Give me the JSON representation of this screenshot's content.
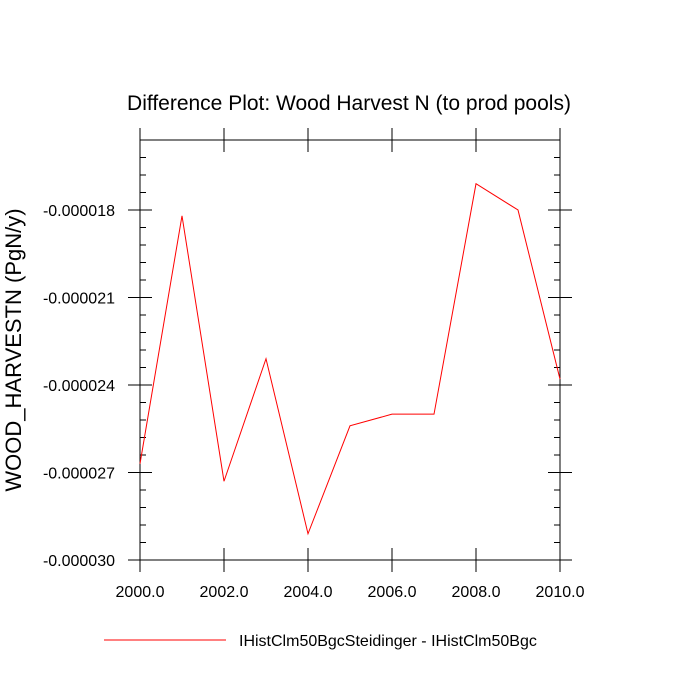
{
  "chart_data": {
    "type": "line",
    "title": "Difference Plot: Wood Harvest N (to prod pools)",
    "xlabel": "",
    "ylabel": "WOOD_HARVESTN  (PgN/y)",
    "xlim": [
      2000,
      2010
    ],
    "ylim": [
      -3e-05,
      -1.56e-05
    ],
    "x_tick_values": [
      2000,
      2002,
      2004,
      2006,
      2008,
      2010
    ],
    "x_tick_labels": [
      "2000.0",
      "2002.0",
      "2004.0",
      "2006.0",
      "2008.0",
      "2010.0"
    ],
    "y_tick_values": [
      -3e-05,
      -2.7e-05,
      -2.4e-05,
      -2.1e-05,
      -1.8e-05
    ],
    "y_tick_labels": [
      "-0.000030",
      "-0.000027",
      "-0.000024",
      "-0.000021",
      "-0.000018"
    ],
    "grid": false,
    "legend_position": "bottom",
    "series": [
      {
        "name": "IHistClm50BgcSteidinger - IHistClm50Bgc",
        "color": "#ff0000",
        "x": [
          2000,
          2001,
          2002,
          2003,
          2004,
          2005,
          2006,
          2007,
          2008,
          2009,
          2010
        ],
        "values": [
          -2.67e-05,
          -1.82e-05,
          -2.73e-05,
          -2.31e-05,
          -2.91e-05,
          -2.54e-05,
          -2.5e-05,
          -2.5e-05,
          -1.71e-05,
          -1.8e-05,
          -2.38e-05
        ]
      }
    ]
  }
}
